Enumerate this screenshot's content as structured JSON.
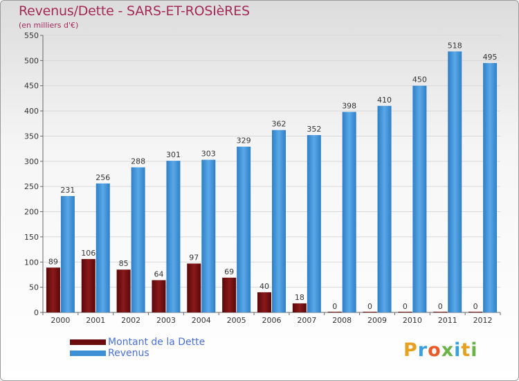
{
  "chart_data": {
    "type": "bar",
    "title": "Revenus/Dette - SARS-ET-ROSIèRES",
    "subtitle": "(en milliers d'€)",
    "categories": [
      "2000",
      "2001",
      "2002",
      "2003",
      "2004",
      "2005",
      "2006",
      "2007",
      "2008",
      "2009",
      "2010",
      "2011",
      "2012"
    ],
    "series": [
      {
        "name": "Montant de la Dette",
        "color": "#7b0f10",
        "values": [
          89,
          106,
          85,
          64,
          97,
          69,
          40,
          18,
          0,
          0,
          0,
          0,
          0
        ]
      },
      {
        "name": "Revenus",
        "color": "#3d8fd6",
        "values": [
          231,
          256,
          288,
          301,
          303,
          329,
          362,
          352,
          398,
          410,
          450,
          518,
          495
        ]
      }
    ],
    "yticks": [
      0,
      50,
      100,
      150,
      200,
      250,
      300,
      350,
      400,
      450,
      500,
      550
    ],
    "ylim": [
      0,
      550
    ],
    "grid": true,
    "legend_position": "bottom-left"
  },
  "logo": {
    "letters": [
      "P",
      "r",
      "o",
      "x",
      "i",
      "t",
      "i"
    ],
    "colors": [
      "#e8a020",
      "#3aa0d8",
      "#e85a2a",
      "#6ab24a",
      "#3aa0d8",
      "#e8a020",
      "#6ab24a"
    ]
  }
}
